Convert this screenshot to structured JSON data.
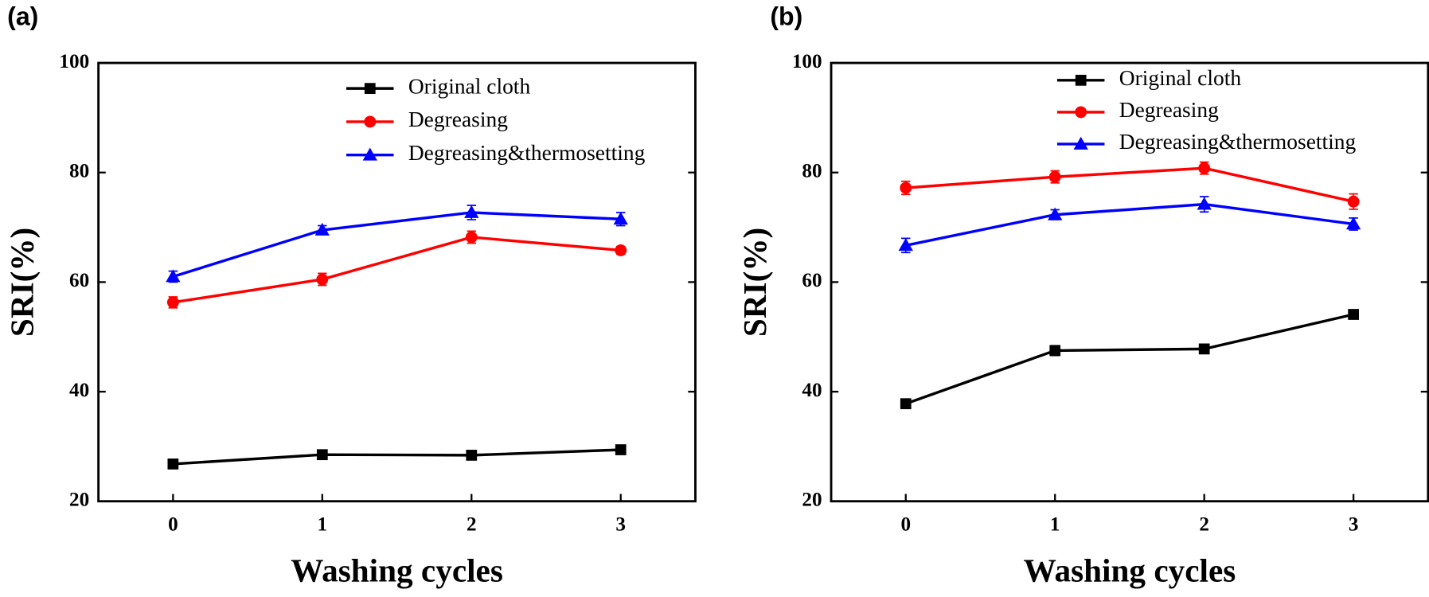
{
  "chart_data": [
    {
      "type": "line",
      "panel_label": "(a)",
      "xlabel": "Washing cycles",
      "ylabel": "SRI(%)",
      "x": [
        0,
        1,
        2,
        3
      ],
      "xlim": [
        -0.5,
        3.5
      ],
      "xticks": [
        0,
        1,
        2,
        3
      ],
      "ylim": [
        20,
        100
      ],
      "yticks": [
        20,
        40,
        60,
        80,
        100
      ],
      "series": [
        {
          "name": "Original cloth",
          "color": "#000000",
          "marker": "square",
          "values": [
            26.8,
            28.5,
            28.4,
            29.4
          ],
          "errors": [
            0.5,
            0.6,
            0.6,
            0.6
          ]
        },
        {
          "name": "Degreasing",
          "color": "#ff0000",
          "marker": "circle",
          "values": [
            56.3,
            60.5,
            68.2,
            65.8
          ],
          "errors": [
            1.0,
            1.1,
            1.1,
            0.7
          ]
        },
        {
          "name": "Degreasing&thermosetting",
          "color": "#0000ff",
          "marker": "triangle",
          "values": [
            61.0,
            69.5,
            72.7,
            71.5
          ],
          "errors": [
            1.0,
            0.8,
            1.3,
            1.2
          ]
        }
      ]
    },
    {
      "type": "line",
      "panel_label": "(b)",
      "xlabel": "Washing cycles",
      "ylabel": "SRI(%)",
      "x": [
        0,
        1,
        2,
        3
      ],
      "xlim": [
        -0.5,
        3.5
      ],
      "xticks": [
        0,
        1,
        2,
        3
      ],
      "ylim": [
        20,
        100
      ],
      "yticks": [
        20,
        40,
        60,
        80,
        100
      ],
      "series": [
        {
          "name": "Original cloth",
          "color": "#000000",
          "marker": "square",
          "values": [
            37.8,
            47.5,
            47.8,
            54.1
          ],
          "errors": [
            0.8,
            0.9,
            0.6,
            0.6
          ]
        },
        {
          "name": "Degreasing",
          "color": "#ff0000",
          "marker": "circle",
          "values": [
            77.2,
            79.2,
            80.8,
            74.7
          ],
          "errors": [
            1.2,
            1.1,
            1.1,
            1.4
          ]
        },
        {
          "name": "Degreasing&thermosetting",
          "color": "#0000ff",
          "marker": "triangle",
          "values": [
            66.7,
            72.3,
            74.2,
            70.6
          ],
          "errors": [
            1.3,
            0.9,
            1.4,
            1.1
          ]
        }
      ]
    }
  ]
}
